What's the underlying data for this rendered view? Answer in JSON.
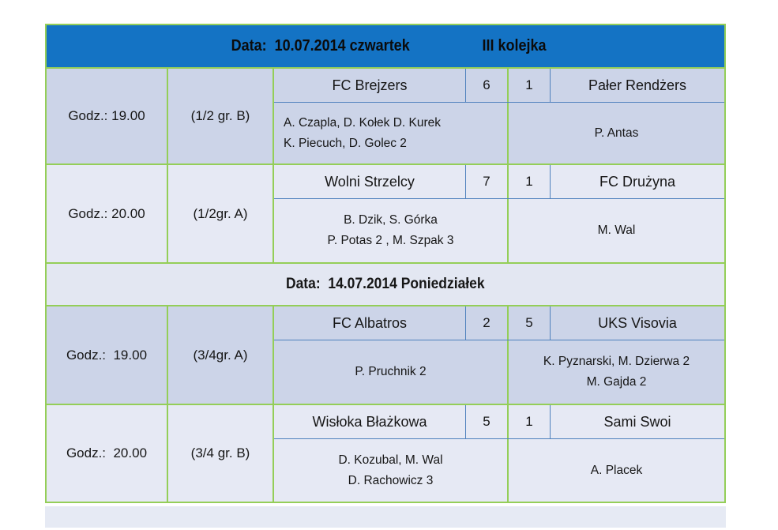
{
  "colors": {
    "header_bg": "#1473c4",
    "grid_green": "#94ce58",
    "divider_blue": "#4f81bd",
    "row_dark": "#ccd4e8",
    "row_light": "#e6e9f4",
    "date_row_bg": "#e3e7f2"
  },
  "table": {
    "header": {
      "date": "Data:  10.07.2014 czwartek",
      "round": "III kolejka"
    },
    "date2": "Data:  14.07.2014 Poniedziałek",
    "matches": [
      {
        "time": "Godz.: 19.00",
        "group": "(1/2 gr. B)",
        "home": "FC Brejzers",
        "home_score": "6",
        "away_score": "1",
        "away": "Pałer Rendżers",
        "home_scorers": [
          "A. Czapla, D. Kołek D. Kurek",
          "K. Piecuch, D. Golec 2"
        ],
        "away_scorers": [
          "P. Antas"
        ]
      },
      {
        "time": "Godz.: 20.00",
        "group": "(1/2gr. A)",
        "home": "Wolni Strzelcy",
        "home_score": "7",
        "away_score": "1",
        "away": "FC Drużyna",
        "home_scorers": [
          "B. Dzik, S. Górka",
          "P. Potas 2 , M. Szpak 3"
        ],
        "away_scorers": [
          "M. Wal"
        ]
      },
      {
        "time": "Godz.:  19.00",
        "group": "(3/4gr. A)",
        "home": "FC Albatros",
        "home_score": "2",
        "away_score": "5",
        "away": "UKS Visovia",
        "home_scorers": [
          "P. Pruchnik 2"
        ],
        "away_scorers": [
          "K. Pyznarski, M. Dzierwa 2",
          "M. Gajda 2"
        ]
      },
      {
        "time": "Godz.:  20.00",
        "group": "(3/4 gr. B)",
        "home": "Wisłoka Błażkowa",
        "home_score": "5",
        "away_score": "1",
        "away": "Sami Swoi",
        "home_scorers": [
          "D. Kozubal, M. Wal",
          "D. Rachowicz 3"
        ],
        "away_scorers": [
          "A. Placek"
        ]
      }
    ]
  }
}
